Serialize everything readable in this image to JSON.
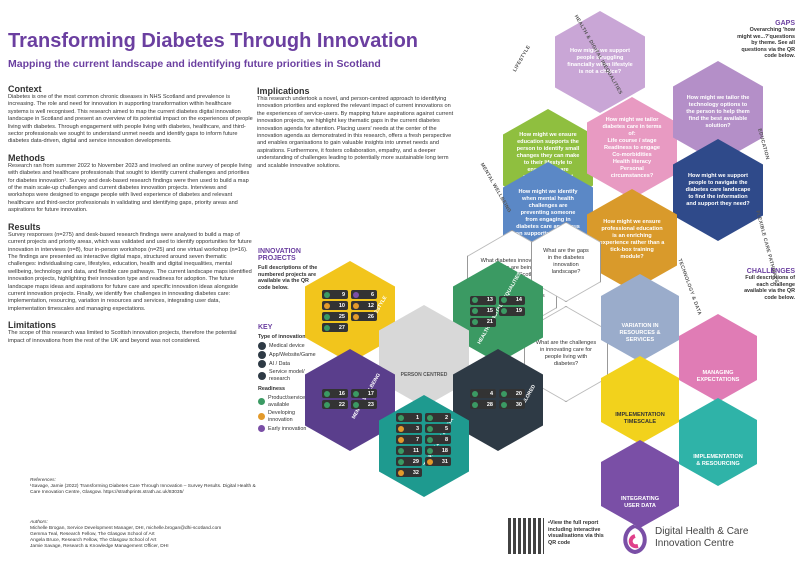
{
  "header": {
    "title": "Transforming Diabetes Through Innovation",
    "subtitle": "Mapping the current landscape and identifying future priorities in Scotland"
  },
  "sections": [
    {
      "heading": "Context",
      "body": "Diabetes is one of the most common chronic diseases in NHS Scotland and prevalence is increasing. The role and need for innovation in supporting transformation within healthcare systems is well recognised. This research aimed to map the current diabetes digital innovation landscape in Scotland and present an overview of its potential impact on the experiences of people living with diabetes. Through engagement with people living with diabetes, healthcare, and third-sector professionals we sought to understand unmet needs and identify gaps to inform future diabetes data-driven, digital and service innovation developments."
    },
    {
      "heading": "Methods",
      "body": "Research ran from summer 2022 to November 2023 and involved an online survey of people living with diabetes and healthcare professionals that sought to identify current challenges and priorities for diabetes innovation¹. Survey and desk-based research findings were then used to build a map of the main scale-up challenges and current diabetes innovation projects. Interviews and workshops were designed to engage people with lived experience of diabetes and relevant healthcare and third-sector professionals in validating and identifying gaps, priority areas and aspirations for future innovation."
    },
    {
      "heading": "Results",
      "body": "Survey responses (n=275) and desk-based research findings were analysed to build a map of current projects and priority areas, which was validated and used to identify opportunities for future innovation in interviews (n=8), four in-person workshops (n=25) and one virtual workshop (n=16). The findings are presented as interactive digital maps, structured around seven thematic challenges: individualising care, lifestyles, education, health and digital inequalities, mental wellbeing, technology and data, and flexible care pathways. The current landscape maps identified innovation projects, highlighting their innovation type and readiness for adoption. The future landscape maps ideas and aspirations for future care and specific innovation ideas alongside current innovation projects. Finally, we identify five challenges in innovating diabetes care: implementation, resourcing, variation in resources and services, integrating user data, implementation timescales and managing expectations."
    },
    {
      "heading": "Limitations",
      "body": "The scope of this research was limited to Scottish innovation projects, therefore the potential impact of innovations from the rest of the UK and beyond was not considered."
    },
    {
      "heading": "Implications",
      "body": "This research undertook a novel, and person-centred approach to identifying innovation priorities and explored the relevant impact of current innovations on the experiences of service-users. By mapping future aspirations against current innovation projects, we highlight key thematic gaps in the current diabetes innovation agenda for attention. Placing users' needs at the center of the innovation agenda as demonstrated in this research, offers a fresh perspective and enables organisations to gain valuable insights into unmet needs and aspirations. Furthermore, it fosters collaboration, empathy, and a deeper understanding of challenges leading to potentially more sustainable long term and scalable innovative solutions."
    }
  ],
  "references": {
    "label": "References:",
    "text": "¹Savage, Jamie (2022) Transforming Diabetes Care Through Innovation – Survey Results. Digital Health & Care Innovation Centre, Glasgow. https://strathprints.strath.ac.uk/83035/"
  },
  "authors": {
    "label": "Authors:",
    "lines": [
      "Michelle Brogan, Service Development Manager, DHI, michelle.brogan@dhi-scotland.com",
      "Gemma Teal, Research Fellow, The Glasgow School of Art",
      "Angela Bruce, Research Fellow, The Glasgow School of Art",
      "Jamie Savage, Research & Knowledge Management Officer, DHI"
    ]
  },
  "qr_text": "•View the full report including interactive visualisations via this QR code",
  "logo": "Digital Health & Care Innovation Centre",
  "gaps": {
    "heading": "GAPS",
    "text": "Overarching 'how might we...?'questions by theme. See all questions via the QR code below."
  },
  "challenges": {
    "heading": "CHALLENGES",
    "text": "Full descriptions of each challenge available via the QR code below.",
    "items": [
      "VARIATION IN RESOURCES & SERVICES",
      "MANAGING EXPECTATIONS",
      "IMPLEMENTATION TIMESCALE",
      "IMPLEMENTATION & RESOURCING",
      "INTEGRATING USER DATA"
    ]
  },
  "questions": [
    {
      "text": "How might we support people struggling financially when lifestyle is not a choice?"
    },
    {
      "text": "How might we ensure education supports the person to identify small changes they can make to their lifestyle to ensure they are achievable and not overwhelming?"
    },
    {
      "text": "How might we tailor diabetes care in terms of:",
      "items": [
        "Life course / stage",
        "Readiness to engage",
        "Co-morbidities",
        "Health literacy",
        "Personal circumstances?"
      ]
    },
    {
      "text": "How might we tailor the technology options to the person to help them find the best available solution?"
    },
    {
      "text": "How might we identify when mental health challenges are preventing someone from engaging in diabetes care and focus on supporting this first?"
    },
    {
      "text": "How might we support people to navigate the diabetes care landscape to find the information and support they need?"
    },
    {
      "text": "How might we ensure professional education is an enriching experience rather than a tick-box training module?"
    }
  ],
  "theme_labels": [
    "HEALTH & DIGITAL INEQUALITIES",
    "LIFESTYLE",
    "EDUCATION",
    "MENTAL WELLBEING",
    "FLEXIBLE CARE PATHWAYS",
    "TECHNOLOGY & DATA"
  ],
  "center_questions": [
    "What diabetes innovation projects are being undertaken in Scotland with the potential to impact on the experiences of people living with diabetes in the next five years?",
    "What are the gaps in the diabetes innovation landscape?",
    "What are the challenges in innovating care for people living with diabetes?"
  ],
  "innovation_projects": {
    "heading": "INNOVATION PROJECTS",
    "text": "Full descriptions of the numbered projects are available via the QR code below."
  },
  "key": {
    "heading": "KEY",
    "type_heading": "Type of innovation",
    "types": [
      "Medical device",
      "App/Website/Game",
      "AI / Data",
      "Service model/ research"
    ],
    "readiness_heading": "Readiness",
    "readiness": [
      {
        "label": "Product/service available",
        "color": "#3b9a63"
      },
      {
        "label": "Developing innovation",
        "color": "#e39a2b"
      },
      {
        "label": "Early innovation",
        "color": "#7a4fa6"
      }
    ]
  },
  "clusters": [
    {
      "label": "LIFESTYLE",
      "color": "#f2c51c",
      "projects": [
        {
          "n": "9",
          "c": "#3b9a63"
        },
        {
          "n": "6",
          "c": "#7a4fa6"
        },
        {
          "n": "10",
          "c": "#e39a2b"
        },
        {
          "n": "12",
          "c": "#e39a2b"
        },
        {
          "n": "25",
          "c": "#3b9a63"
        },
        {
          "n": "26",
          "c": "#e39a2b"
        },
        {
          "n": "27",
          "c": "#3b9a63"
        }
      ]
    },
    {
      "label": "HEALTH & DIGITAL INEQUALITIES",
      "color": "#3b9a63",
      "projects": [
        {
          "n": "13",
          "c": "#3b9a63"
        },
        {
          "n": "14",
          "c": "#3b9a63"
        },
        {
          "n": "15",
          "c": "#3b9a63"
        },
        {
          "n": "19",
          "c": "#3b9a63"
        },
        {
          "n": "21",
          "c": "#3b9a63"
        }
      ]
    },
    {
      "label": "PERSON CENTRED",
      "color": "#d8d8d8",
      "projects": []
    },
    {
      "label": "MENTAL WELLBEING",
      "color": "#5a3e8c",
      "projects": [
        {
          "n": "16",
          "c": "#3b9a63"
        },
        {
          "n": "17",
          "c": "#3b9a63"
        },
        {
          "n": "22",
          "c": "#3b9a63"
        },
        {
          "n": "23",
          "c": "#3b9a63"
        }
      ]
    },
    {
      "label": "TAILORED",
      "color": "#2e3a45",
      "projects": [
        {
          "n": "4",
          "c": "#3b9a63"
        },
        {
          "n": "20",
          "c": "#3b9a63"
        },
        {
          "n": "28",
          "c": "#3b9a63"
        },
        {
          "n": "30",
          "c": "#3b9a63"
        }
      ]
    },
    {
      "label": "TECHNOLOGY & DATA",
      "color": "#1e9a8f",
      "projects": [
        {
          "n": "1",
          "c": "#3b9a63"
        },
        {
          "n": "2",
          "c": "#3b9a63"
        },
        {
          "n": "3",
          "c": "#e39a2b"
        },
        {
          "n": "5",
          "c": "#3b9a63"
        },
        {
          "n": "7",
          "c": "#e39a2b"
        },
        {
          "n": "8",
          "c": "#3b9a63"
        },
        {
          "n": "11",
          "c": "#3b9a63"
        },
        {
          "n": "18",
          "c": "#3b9a63"
        },
        {
          "n": "29",
          "c": "#3b9a63"
        },
        {
          "n": "31",
          "c": "#e39a2b"
        },
        {
          "n": "32",
          "c": "#e39a2b"
        }
      ]
    }
  ]
}
